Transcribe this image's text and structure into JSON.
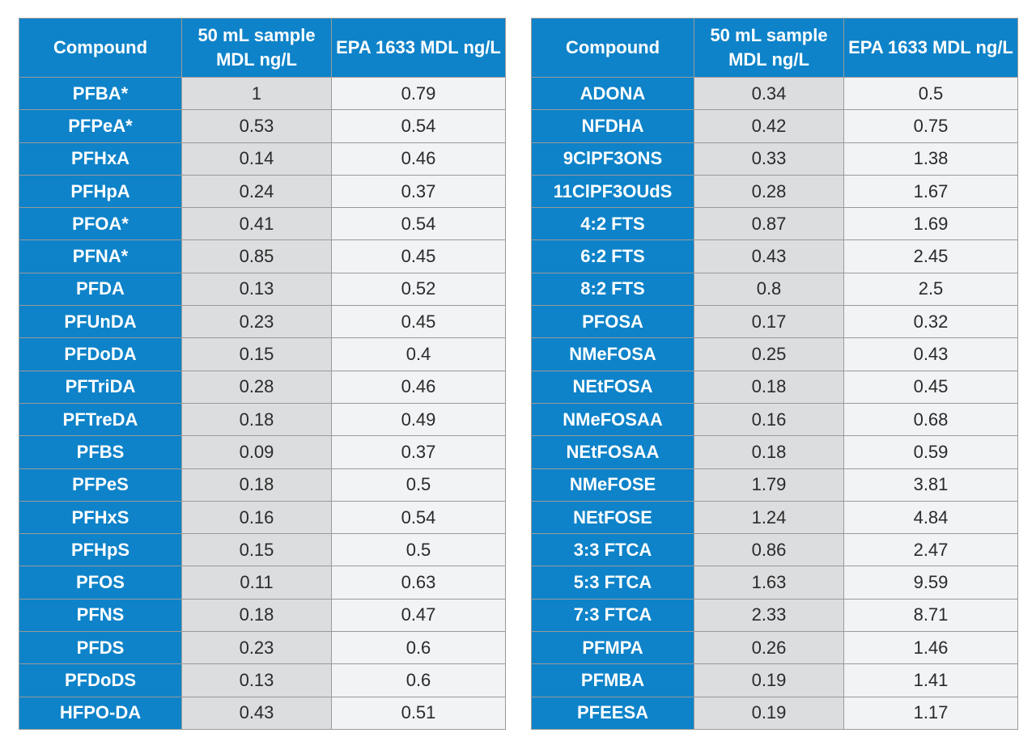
{
  "headers": {
    "compound": "Compound",
    "sample_mdl": "50 mL sample MDL ng/L",
    "epa_mdl": "EPA 1633 MDL ng/L"
  },
  "colors": {
    "header_bg": "#0e83c9",
    "sample_bg": "#dcdddf",
    "epa_bg": "#f2f3f5"
  },
  "left_table": [
    {
      "compound": "PFBA*",
      "sample_mdl": "1",
      "epa_mdl": "0.79"
    },
    {
      "compound": "PFPeA*",
      "sample_mdl": "0.53",
      "epa_mdl": "0.54"
    },
    {
      "compound": "PFHxA",
      "sample_mdl": "0.14",
      "epa_mdl": "0.46"
    },
    {
      "compound": "PFHpA",
      "sample_mdl": "0.24",
      "epa_mdl": "0.37"
    },
    {
      "compound": "PFOA*",
      "sample_mdl": "0.41",
      "epa_mdl": "0.54"
    },
    {
      "compound": "PFNA*",
      "sample_mdl": "0.85",
      "epa_mdl": "0.45"
    },
    {
      "compound": "PFDA",
      "sample_mdl": "0.13",
      "epa_mdl": "0.52"
    },
    {
      "compound": "PFUnDA",
      "sample_mdl": "0.23",
      "epa_mdl": "0.45"
    },
    {
      "compound": "PFDoDA",
      "sample_mdl": "0.15",
      "epa_mdl": "0.4"
    },
    {
      "compound": "PFTriDA",
      "sample_mdl": "0.28",
      "epa_mdl": "0.46"
    },
    {
      "compound": "PFTreDA",
      "sample_mdl": "0.18",
      "epa_mdl": "0.49"
    },
    {
      "compound": "PFBS",
      "sample_mdl": "0.09",
      "epa_mdl": "0.37"
    },
    {
      "compound": "PFPeS",
      "sample_mdl": "0.18",
      "epa_mdl": "0.5"
    },
    {
      "compound": "PFHxS",
      "sample_mdl": "0.16",
      "epa_mdl": "0.54"
    },
    {
      "compound": "PFHpS",
      "sample_mdl": "0.15",
      "epa_mdl": "0.5"
    },
    {
      "compound": "PFOS",
      "sample_mdl": "0.11",
      "epa_mdl": "0.63"
    },
    {
      "compound": "PFNS",
      "sample_mdl": "0.18",
      "epa_mdl": "0.47"
    },
    {
      "compound": "PFDS",
      "sample_mdl": "0.23",
      "epa_mdl": "0.6"
    },
    {
      "compound": "PFDoDS",
      "sample_mdl": "0.13",
      "epa_mdl": "0.6"
    },
    {
      "compound": "HFPO-DA",
      "sample_mdl": "0.43",
      "epa_mdl": "0.51"
    }
  ],
  "right_table": [
    {
      "compound": "ADONA",
      "sample_mdl": "0.34",
      "epa_mdl": "0.5"
    },
    {
      "compound": "NFDHA",
      "sample_mdl": "0.42",
      "epa_mdl": "0.75"
    },
    {
      "compound": "9ClPF3ONS",
      "sample_mdl": "0.33",
      "epa_mdl": "1.38"
    },
    {
      "compound": "11ClPF3OUdS",
      "sample_mdl": "0.28",
      "epa_mdl": "1.67"
    },
    {
      "compound": "4:2 FTS",
      "sample_mdl": "0.87",
      "epa_mdl": "1.69"
    },
    {
      "compound": "6:2 FTS",
      "sample_mdl": "0.43",
      "epa_mdl": "2.45"
    },
    {
      "compound": "8:2 FTS",
      "sample_mdl": "0.8",
      "epa_mdl": "2.5"
    },
    {
      "compound": "PFOSA",
      "sample_mdl": "0.17",
      "epa_mdl": "0.32"
    },
    {
      "compound": "NMeFOSA",
      "sample_mdl": "0.25",
      "epa_mdl": "0.43"
    },
    {
      "compound": "NEtFOSA",
      "sample_mdl": "0.18",
      "epa_mdl": "0.45"
    },
    {
      "compound": "NMeFOSAA",
      "sample_mdl": "0.16",
      "epa_mdl": "0.68"
    },
    {
      "compound": "NEtFOSAA",
      "sample_mdl": "0.18",
      "epa_mdl": "0.59"
    },
    {
      "compound": "NMeFOSE",
      "sample_mdl": "1.79",
      "epa_mdl": "3.81"
    },
    {
      "compound": "NEtFOSE",
      "sample_mdl": "1.24",
      "epa_mdl": "4.84"
    },
    {
      "compound": "3:3 FTCA",
      "sample_mdl": "0.86",
      "epa_mdl": "2.47"
    },
    {
      "compound": "5:3 FTCA",
      "sample_mdl": "1.63",
      "epa_mdl": "9.59"
    },
    {
      "compound": "7:3 FTCA",
      "sample_mdl": "2.33",
      "epa_mdl": "8.71"
    },
    {
      "compound": "PFMPA",
      "sample_mdl": "0.26",
      "epa_mdl": "1.46"
    },
    {
      "compound": "PFMBA",
      "sample_mdl": "0.19",
      "epa_mdl": "1.41"
    },
    {
      "compound": "PFEESA",
      "sample_mdl": "0.19",
      "epa_mdl": "1.17"
    }
  ]
}
